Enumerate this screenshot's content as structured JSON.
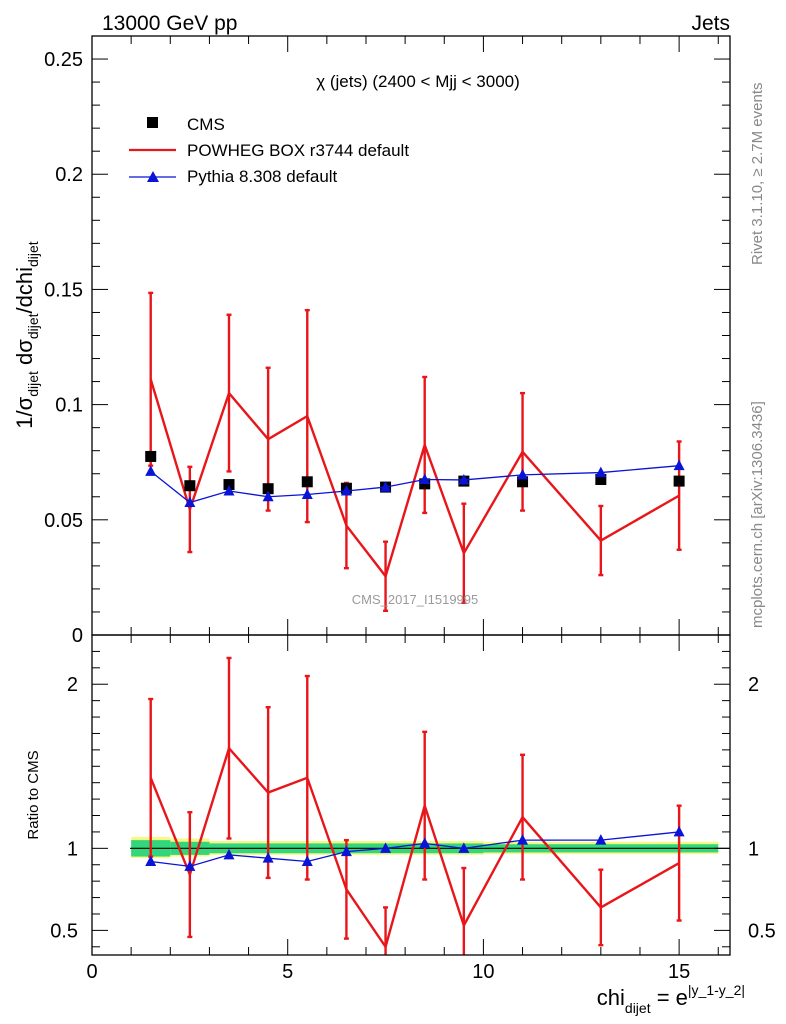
{
  "header": {
    "left": "13000 GeV pp",
    "right": "Jets"
  },
  "side_labels": {
    "rivet": "Rivet 3.1.10, ≥ 2.7M events",
    "mcplots": "mcplots.cern.ch [arXiv:1306.3436]"
  },
  "watermark": "CMS_2017_I1519995",
  "colors": {
    "data": "#000000",
    "powheg": "#e8161a",
    "pythia": "#0a14d6",
    "band_inner": "#33d67a",
    "band_outer": "#f7f78a"
  },
  "chart_data": [
    {
      "type": "scatter",
      "title": "χ (jets) (2400 < Mjj < 3000)",
      "ylabel": "1/σ_dijet dσ_dijet/dchi_dijet",
      "xlim": [
        0,
        16.3
      ],
      "ylim": [
        0,
        0.26
      ],
      "yticks": [
        0,
        0.05,
        0.1,
        0.15,
        0.2,
        0.25
      ],
      "ytick_labels": [
        "0",
        "0.05",
        "0.1",
        "0.15",
        "0.2",
        "0.25"
      ],
      "legend_position": "top-left",
      "series": [
        {
          "name": "CMS",
          "style": "markers",
          "marker": "square",
          "x": [
            1.5,
            2.5,
            3.5,
            4.5,
            5.5,
            6.5,
            7.5,
            8.5,
            9.5,
            11,
            13,
            15
          ],
          "y": [
            0.0775,
            0.0648,
            0.0653,
            0.0635,
            0.0665,
            0.0637,
            0.0642,
            0.0656,
            0.0668,
            0.0665,
            0.0675,
            0.0668
          ]
        },
        {
          "name": "POWHEG BOX r3744 default",
          "style": "line",
          "x": [
            1.5,
            2.5,
            3.5,
            4.5,
            5.5,
            6.5,
            7.5,
            8.5,
            9.5,
            11,
            13,
            15
          ],
          "y": [
            0.111,
            0.0545,
            0.105,
            0.085,
            0.095,
            0.0475,
            0.0255,
            0.0825,
            0.0355,
            0.0795,
            0.041,
            0.0605
          ],
          "yerr": [
            0.0375,
            0.0185,
            0.034,
            0.031,
            0.046,
            0.0185,
            0.015,
            0.0295,
            0.0215,
            0.0255,
            0.015,
            0.0235
          ]
        },
        {
          "name": "Pythia 8.308 default",
          "style": "line+markers",
          "marker": "triangle",
          "x": [
            1.5,
            2.5,
            3.5,
            4.5,
            5.5,
            6.5,
            7.5,
            8.5,
            9.5,
            11,
            13,
            15
          ],
          "y": [
            0.071,
            0.0575,
            0.0625,
            0.06,
            0.061,
            0.0625,
            0.0642,
            0.0675,
            0.0673,
            0.0695,
            0.0705,
            0.0735
          ]
        }
      ]
    },
    {
      "type": "scatter",
      "ylabel": "Ratio to CMS",
      "xlabel": "chi_dijet = e^|y_1-y_2|",
      "xlim": [
        0,
        16.3
      ],
      "ylim": [
        0.35,
        2.3
      ],
      "xticks": [
        0,
        5,
        10,
        15
      ],
      "xtick_labels": [
        "0",
        "5",
        "10",
        "15"
      ],
      "yticks": [
        0.5,
        1,
        2
      ],
      "ytick_labels": [
        "0.5",
        "1",
        "2"
      ],
      "reference_line": 1,
      "band_inner": [
        {
          "x0": 1.0,
          "x1": 2.0,
          "lo": 0.95,
          "hi": 1.05
        },
        {
          "x0": 2.0,
          "x1": 3.0,
          "lo": 0.96,
          "hi": 1.04
        },
        {
          "x0": 3.0,
          "x1": 10.0,
          "lo": 0.97,
          "hi": 1.03
        },
        {
          "x0": 10.0,
          "x1": 16.0,
          "lo": 0.975,
          "hi": 1.025
        }
      ],
      "band_outer": [
        {
          "x0": 1.0,
          "x1": 2.0,
          "lo": 0.94,
          "hi": 1.07
        },
        {
          "x0": 2.0,
          "x1": 3.0,
          "lo": 0.95,
          "hi": 1.06
        },
        {
          "x0": 3.0,
          "x1": 10.0,
          "lo": 0.96,
          "hi": 1.045
        },
        {
          "x0": 10.0,
          "x1": 16.0,
          "lo": 0.965,
          "hi": 1.04
        }
      ],
      "series": [
        {
          "name": "POWHEG BOX r3744 default",
          "style": "line",
          "x": [
            1.5,
            2.5,
            3.5,
            4.5,
            5.5,
            6.5,
            7.5,
            8.5,
            9.5,
            11,
            13,
            15
          ],
          "y": [
            1.43,
            0.84,
            1.61,
            1.34,
            1.43,
            0.75,
            0.4,
            1.26,
            0.53,
            1.19,
            0.64,
            0.91
          ],
          "yerr": [
            0.48,
            0.38,
            0.55,
            0.52,
            0.62,
            0.3,
            0.24,
            0.45,
            0.35,
            0.38,
            0.23,
            0.35
          ]
        },
        {
          "name": "Pythia 8.308 default",
          "style": "line+markers",
          "marker": "triangle",
          "x": [
            1.5,
            2.5,
            3.5,
            4.5,
            5.5,
            6.5,
            7.5,
            8.5,
            9.5,
            11,
            13,
            15
          ],
          "y": [
            0.92,
            0.89,
            0.96,
            0.94,
            0.92,
            0.98,
            1.0,
            1.03,
            1.0,
            1.05,
            1.05,
            1.1
          ]
        }
      ]
    }
  ]
}
